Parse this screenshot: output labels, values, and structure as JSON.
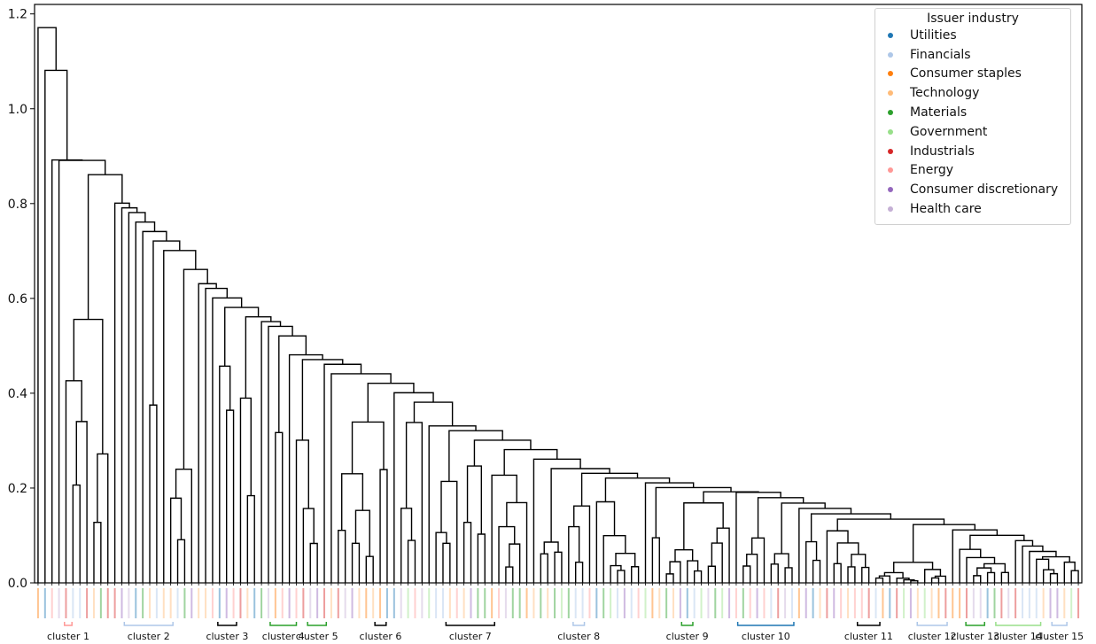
{
  "chart_data": {
    "type": "dendrogram",
    "ylabel": "",
    "xlabel": "",
    "ylim": [
      0,
      1.22
    ],
    "yticks": [
      "0.0",
      "0.2",
      "0.4",
      "0.6",
      "0.8",
      "1.0",
      "1.2"
    ],
    "ytick_values": [
      0.0,
      0.2,
      0.4,
      0.6,
      0.8,
      1.0,
      1.2
    ],
    "leaf_count": 150,
    "top_merge_heights": [
      1.17,
      1.08,
      0.89,
      0.89,
      0.86,
      0.8,
      0.79,
      0.78,
      0.76,
      0.74,
      0.72,
      0.7,
      0.66,
      0.63,
      0.62,
      0.6,
      0.58,
      0.56,
      0.55,
      0.54,
      0.52,
      0.48,
      0.47,
      0.46,
      0.44,
      0.42,
      0.4,
      0.38,
      0.33,
      0.32,
      0.3,
      0.28,
      0.26,
      0.24,
      0.23,
      0.22,
      0.21,
      0.2,
      0.19
    ],
    "legend": {
      "title": "Issuer industry",
      "placement": "top-right",
      "items": [
        {
          "label": "Utilities",
          "color": "#1f77b4"
        },
        {
          "label": "Financials",
          "color": "#aec7e8"
        },
        {
          "label": "Consumer staples",
          "color": "#ff7f0e"
        },
        {
          "label": "Technology",
          "color": "#ffbb78"
        },
        {
          "label": "Materials",
          "color": "#2ca02c"
        },
        {
          "label": "Government",
          "color": "#98df8a"
        },
        {
          "label": "Industrials",
          "color": "#d62728"
        },
        {
          "label": "Energy",
          "color": "#ff9896"
        },
        {
          "label": "Consumer discretionary",
          "color": "#9467bd"
        },
        {
          "label": "Health care",
          "color": "#c5b0d5"
        }
      ]
    },
    "clusters": [
      {
        "label": "cluster 1",
        "color": "#ff9896",
        "leaf_span": [
          8,
          10
        ]
      },
      {
        "label": "cluster 2",
        "color": "#aec7e8",
        "leaf_span": [
          24,
          37
        ]
      },
      {
        "label": "cluster 3",
        "color": "#000000",
        "leaf_span": [
          49,
          54
        ]
      },
      {
        "label": "cluster 4",
        "color": "#2ca02c",
        "leaf_span": [
          63,
          70
        ]
      },
      {
        "label": "cluster 5",
        "color": "#2ca02c",
        "leaf_span": [
          73,
          78
        ]
      },
      {
        "label": "cluster 6",
        "color": "#000000",
        "leaf_span": [
          91,
          94
        ]
      },
      {
        "label": "cluster 7",
        "color": "#000000",
        "leaf_span": [
          110,
          123
        ]
      },
      {
        "label": "cluster 8",
        "color": "#aec7e8",
        "leaf_span": [
          144,
          147
        ]
      },
      {
        "label": "cluster 9",
        "color": "#2ca02c",
        "leaf_span": [
          173,
          176
        ]
      },
      {
        "label": "cluster 10",
        "color": "#1f77b4",
        "leaf_span": [
          188,
          203
        ]
      },
      {
        "label": "cluster 11",
        "color": "#000000",
        "leaf_span": [
          220,
          226
        ]
      },
      {
        "label": "cluster 12",
        "color": "#aec7e8",
        "leaf_span": [
          236,
          244
        ]
      },
      {
        "label": "cluster 13",
        "color": "#2ca02c",
        "leaf_span": [
          249,
          254
        ]
      },
      {
        "label": "cluster 14",
        "color": "#98df8a",
        "leaf_span": [
          257,
          269
        ]
      },
      {
        "label": "cluster 15",
        "color": "#aec7e8",
        "leaf_span": [
          272,
          276
        ]
      }
    ]
  }
}
